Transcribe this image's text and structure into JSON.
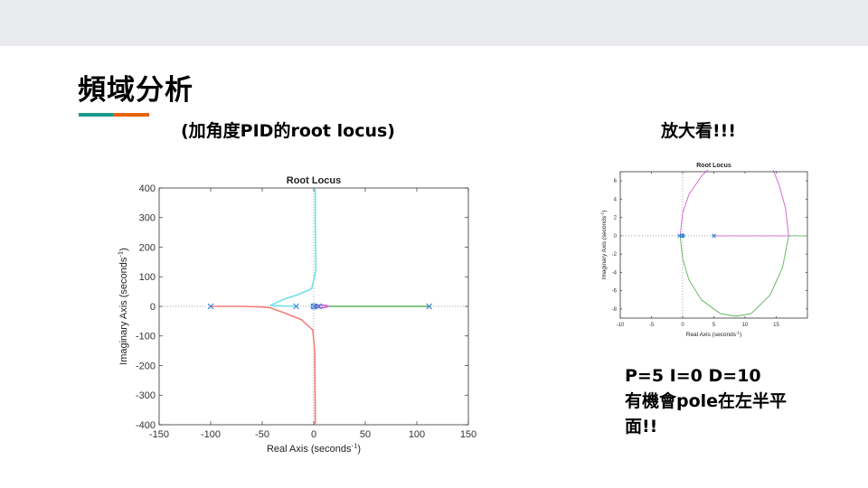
{
  "slide": {
    "title": "頻域分析",
    "subtitle_left": "(加角度PID的root locus)",
    "subtitle_right": "放大看!!!",
    "notes": [
      "P=5 I=0 D=10",
      "有機會pole在左半平",
      "面!!"
    ],
    "accent_colors": [
      "#1a9b8a",
      "#e8630a"
    ],
    "topbar_color": "#e8eaed"
  },
  "chart_data": [
    {
      "type": "line",
      "title": "Root Locus",
      "xlabel": "Real Axis (seconds",
      "xlabel_sup": "-1",
      "ylabel": "Imaginary Axis (seconds",
      "ylabel_sup": "-1",
      "xlim": [
        -150,
        150
      ],
      "ylim": [
        -400,
        400
      ],
      "xticks": [
        -150,
        -100,
        -50,
        0,
        50,
        100,
        150
      ],
      "yticks": [
        -400,
        -300,
        -200,
        -100,
        0,
        100,
        200,
        300,
        400
      ],
      "grid": false,
      "poles": [
        -100,
        -17,
        0,
        5,
        112
      ],
      "series": [
        {
          "color": "#6fe3ec",
          "points": [
            [
              1.5,
              400
            ],
            [
              1.5,
              300
            ],
            [
              1.8,
              200
            ],
            [
              2,
              120
            ],
            [
              -2,
              60
            ],
            [
              -15,
              40
            ],
            [
              -28,
              25
            ],
            [
              -38,
              10
            ],
            [
              -42,
              3
            ],
            [
              -17,
              0
            ]
          ]
        },
        {
          "color": "#f47f7a",
          "points": [
            [
              -100,
              0
            ],
            [
              -70,
              0
            ],
            [
              -50,
              -2
            ],
            [
              -42,
              -5
            ],
            [
              -30,
              -20
            ],
            [
              -12,
              -45
            ],
            [
              -1,
              -80
            ],
            [
              1,
              -150
            ],
            [
              1.2,
              -250
            ],
            [
              1.5,
              -400
            ]
          ]
        },
        {
          "color": "#5bb35b",
          "points": [
            [
              12,
              0
            ],
            [
              112,
              0
            ]
          ]
        },
        {
          "color": "#d15fd1",
          "points": [
            [
              0,
              0
            ],
            [
              3,
              4
            ],
            [
              8,
              5
            ],
            [
              12,
              3
            ],
            [
              14,
              0
            ],
            [
              12,
              -3
            ],
            [
              8,
              -5
            ],
            [
              3,
              -4
            ],
            [
              0,
              0
            ]
          ]
        }
      ]
    },
    {
      "type": "line",
      "title": "Root Locus",
      "xlabel": "Real Axis (seconds",
      "xlabel_sup": "-1",
      "ylabel": "Imaginary Axis (seconds",
      "ylabel_sup": "-1",
      "xlim": [
        -10,
        20
      ],
      "ylim": [
        -9,
        7
      ],
      "xticks": [
        -10,
        -5,
        0,
        5,
        10,
        15
      ],
      "yticks": [
        -8,
        -6,
        -4,
        -2,
        0,
        2,
        4,
        6
      ],
      "grid": false,
      "poles": [
        -0.5,
        0,
        5
      ],
      "series": [
        {
          "color": "#d15fd1",
          "points": [
            [
              -0.4,
              0
            ],
            [
              0,
              2.5
            ],
            [
              1,
              4.5
            ],
            [
              3,
              6.5
            ],
            [
              4,
              7.2
            ]
          ]
        },
        {
          "color": "#d15fd1",
          "points": [
            [
              14.5,
              7.2
            ],
            [
              15.5,
              5.5
            ],
            [
              16.5,
              3
            ],
            [
              17,
              0
            ]
          ]
        },
        {
          "color": "#5bb35b",
          "points": [
            [
              -0.4,
              0
            ],
            [
              0,
              -2.5
            ],
            [
              1,
              -4.8
            ],
            [
              3,
              -7
            ],
            [
              6,
              -8.5
            ],
            [
              8.5,
              -8.8
            ],
            [
              11,
              -8.5
            ],
            [
              14,
              -6.5
            ],
            [
              16,
              -3.5
            ],
            [
              17,
              0
            ]
          ]
        },
        {
          "color": "#d15fd1",
          "points": [
            [
              5,
              0
            ],
            [
              17,
              0
            ]
          ]
        },
        {
          "color": "#5bb35b",
          "points": [
            [
              17,
              0
            ],
            [
              20,
              0
            ]
          ]
        }
      ]
    }
  ]
}
